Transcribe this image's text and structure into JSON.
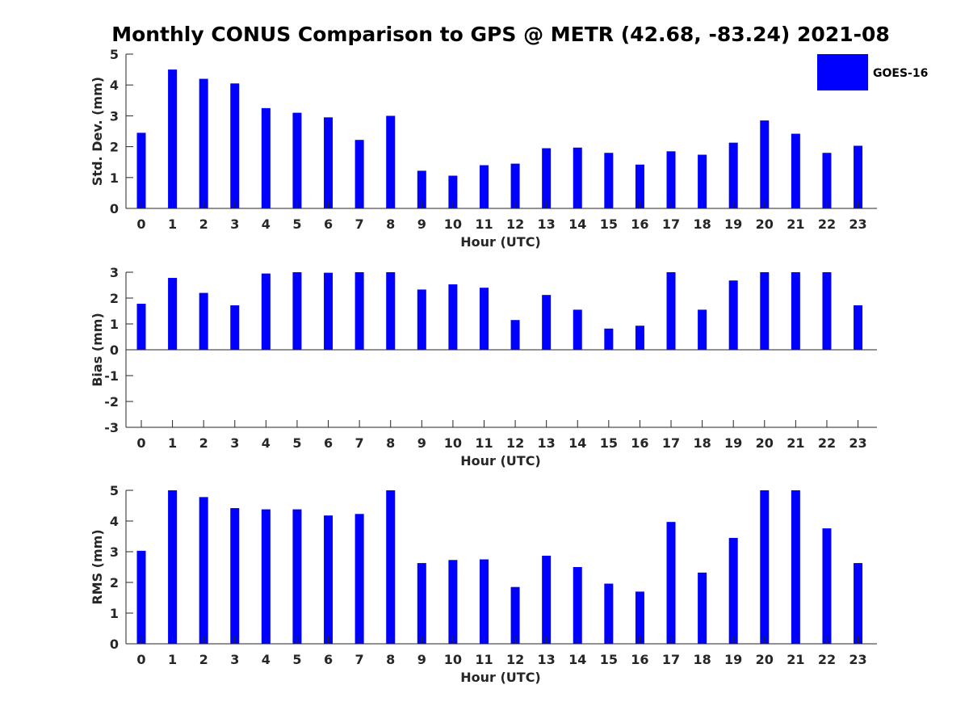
{
  "figure": {
    "title": "Monthly CONUS Comparison to GPS @ METR (42.68, -83.24) 2021-08",
    "legend_label": "GOES-16",
    "bar_color": "#0000ff"
  },
  "chart_data": [
    {
      "type": "bar",
      "title": "",
      "xlabel": "Hour (UTC)",
      "ylabel": "Std. Dev. (mm)",
      "ylim": [
        0,
        5
      ],
      "yticks": [
        0,
        1,
        2,
        3,
        4,
        5
      ],
      "categories": [
        "0",
        "1",
        "2",
        "3",
        "4",
        "5",
        "6",
        "7",
        "8",
        "9",
        "10",
        "11",
        "12",
        "13",
        "14",
        "15",
        "16",
        "17",
        "18",
        "19",
        "20",
        "21",
        "22",
        "23"
      ],
      "series": [
        {
          "name": "GOES-16",
          "values": [
            2.45,
            4.5,
            4.2,
            4.05,
            3.25,
            3.1,
            2.95,
            2.22,
            3.0,
            1.22,
            1.06,
            1.4,
            1.45,
            1.95,
            1.97,
            1.8,
            1.42,
            1.85,
            1.74,
            2.13,
            2.85,
            2.42,
            1.8,
            2.03
          ]
        }
      ],
      "legend": "top-right",
      "grid": false
    },
    {
      "type": "bar",
      "title": "",
      "xlabel": "Hour (UTC)",
      "ylabel": "Bias (mm)",
      "ylim": [
        -3,
        3
      ],
      "yticks": [
        -3,
        -2,
        -1,
        0,
        1,
        2,
        3
      ],
      "categories": [
        "0",
        "1",
        "2",
        "3",
        "4",
        "5",
        "6",
        "7",
        "8",
        "9",
        "10",
        "11",
        "12",
        "13",
        "14",
        "15",
        "16",
        "17",
        "18",
        "19",
        "20",
        "21",
        "22",
        "23"
      ],
      "series": [
        {
          "name": "GOES-16",
          "values": [
            1.78,
            2.78,
            2.2,
            1.72,
            2.95,
            3.0,
            2.98,
            3.0,
            3.0,
            2.33,
            2.53,
            2.4,
            1.15,
            2.12,
            1.55,
            0.82,
            0.93,
            3.0,
            1.55,
            2.68,
            3.0,
            3.0,
            3.0,
            1.72
          ]
        }
      ],
      "grid": false
    },
    {
      "type": "bar",
      "title": "",
      "xlabel": "Hour (UTC)",
      "ylabel": "RMS (mm)",
      "ylim": [
        0,
        5
      ],
      "yticks": [
        0,
        1,
        2,
        3,
        4,
        5
      ],
      "categories": [
        "0",
        "1",
        "2",
        "3",
        "4",
        "5",
        "6",
        "7",
        "8",
        "9",
        "10",
        "11",
        "12",
        "13",
        "14",
        "15",
        "16",
        "17",
        "18",
        "19",
        "20",
        "21",
        "22",
        "23"
      ],
      "series": [
        {
          "name": "GOES-16",
          "values": [
            3.03,
            5.0,
            4.78,
            4.42,
            4.38,
            4.38,
            4.18,
            4.23,
            5.0,
            2.63,
            2.73,
            2.75,
            1.85,
            2.87,
            2.5,
            1.96,
            1.7,
            3.97,
            2.32,
            3.45,
            5.0,
            5.0,
            3.76,
            2.63
          ]
        }
      ],
      "grid": false
    }
  ]
}
